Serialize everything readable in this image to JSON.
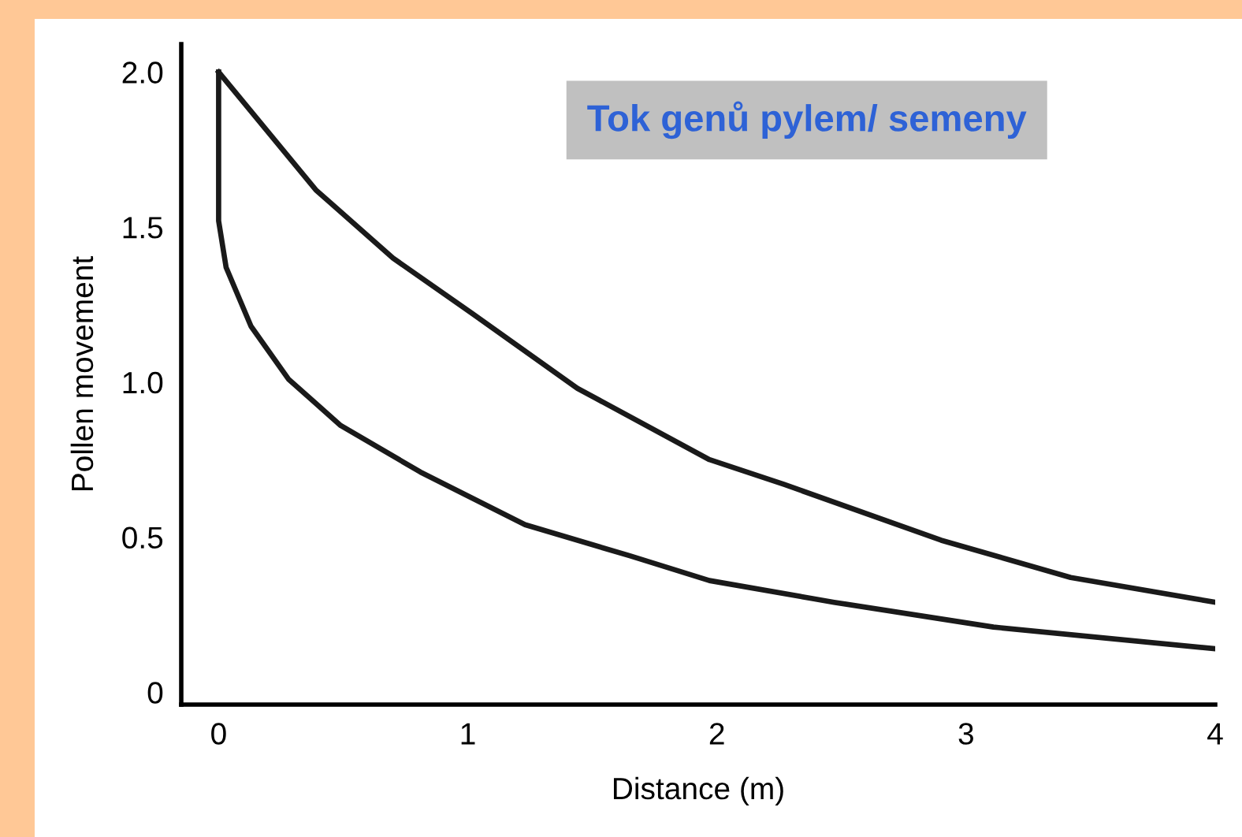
{
  "chart_data": {
    "type": "line",
    "title": "Tok genů pylem/ semeny",
    "xlabel": "Distance (m)",
    "ylabel": "Pollen movement",
    "xlim": [
      -0.15,
      4
    ],
    "ylim": [
      -0.04,
      2.09
    ],
    "xticks": [
      0,
      1,
      2,
      3,
      4
    ],
    "yticks": [
      {
        "value": 0,
        "label": "0"
      },
      {
        "value": 0.5,
        "label": "0.5"
      },
      {
        "value": 1.0,
        "label": "1.0"
      },
      {
        "value": 1.5,
        "label": "1.5"
      },
      {
        "value": 2.0,
        "label": "2.0"
      }
    ],
    "grid": false,
    "marker": "none",
    "line_style": "solid",
    "series": [
      {
        "color": "#1a1a1a",
        "x": [
          0,
          0.39,
          0.7,
          1.02,
          1.44,
          1.97,
          2.27,
          2.9,
          3.42,
          4.0
        ],
        "values": [
          2.0,
          1.62,
          1.4,
          1.22,
          0.98,
          0.75,
          0.67,
          0.49,
          0.37,
          0.29
        ]
      },
      {
        "color": "#1a1a1a",
        "x": [
          0,
          0,
          0.03,
          0.13,
          0.28,
          0.49,
          0.81,
          1.23,
          1.65,
          1.97,
          2.47,
          3.11,
          4.0
        ],
        "values": [
          2.0,
          1.52,
          1.37,
          1.18,
          1.01,
          0.86,
          0.71,
          0.54,
          0.44,
          0.36,
          0.29,
          0.21,
          0.14
        ]
      }
    ]
  }
}
